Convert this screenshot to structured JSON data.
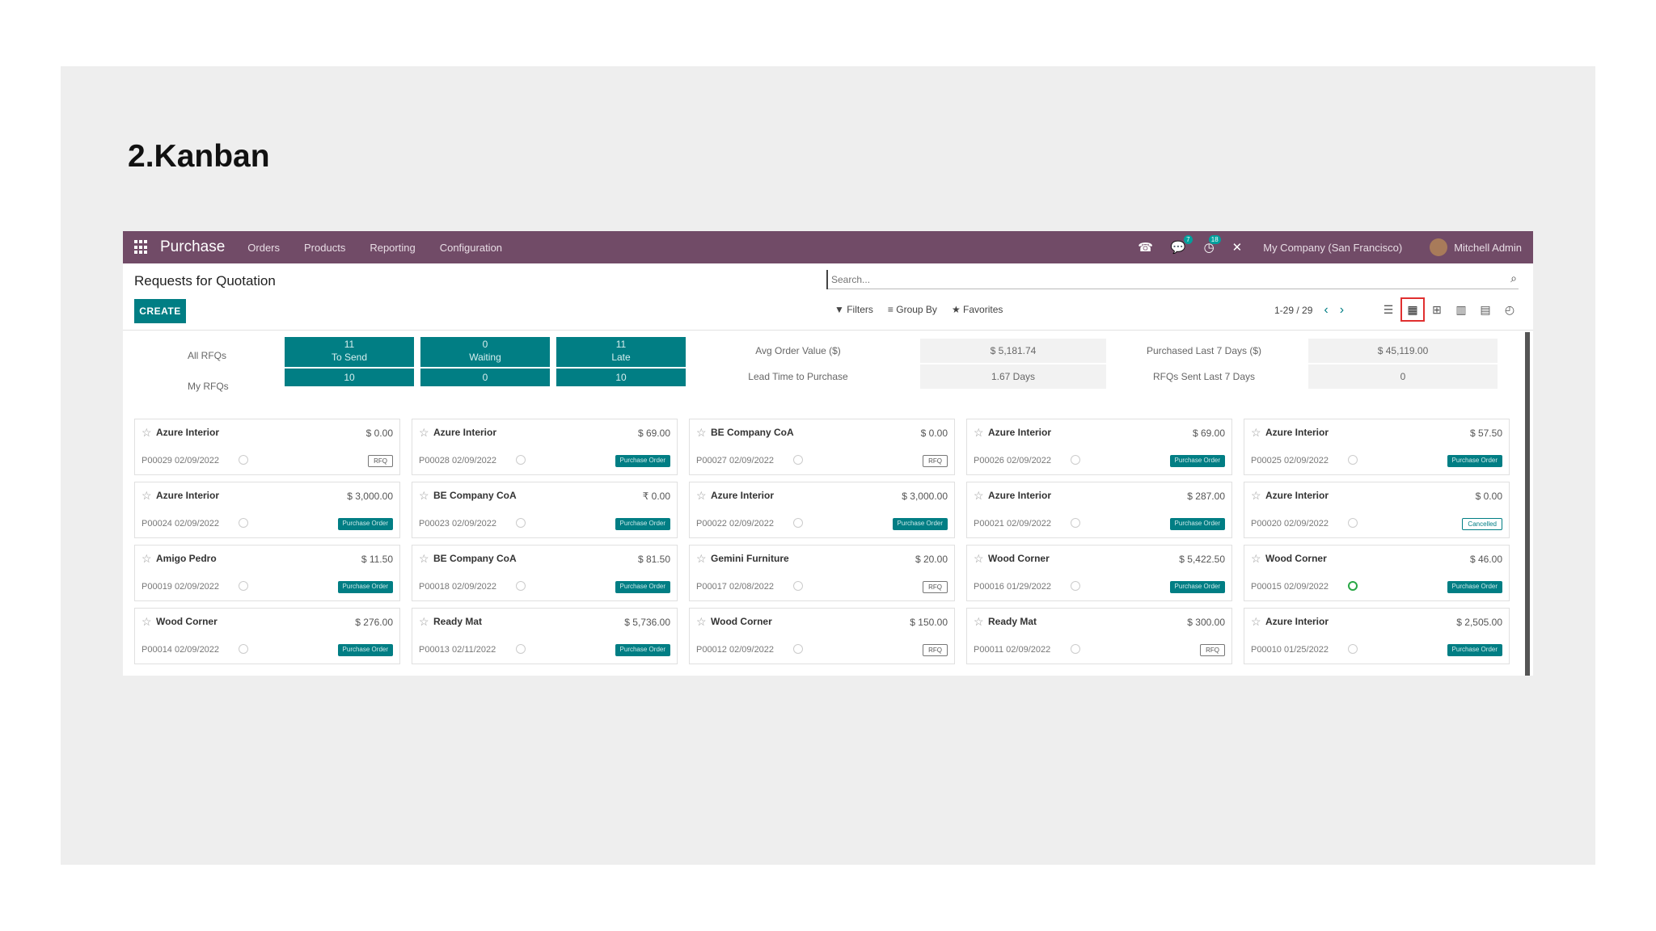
{
  "slide": {
    "title": "2.Kanban"
  },
  "navbar": {
    "brand": "Purchase",
    "menus": [
      "Orders",
      "Products",
      "Reporting",
      "Configuration"
    ],
    "badges": {
      "messages": "7",
      "activities": "18"
    },
    "company": "My Company (San Francisco)",
    "user": "Mitchell Admin"
  },
  "control": {
    "breadcrumb": "Requests for Quotation",
    "create_label": "CREATE",
    "search_placeholder": "Search...",
    "filters_label": "Filters",
    "groupby_label": "Group By",
    "favorites_label": "Favorites",
    "pager": "1-29 / 29",
    "active_view": "kanban"
  },
  "dashboard": {
    "row_labels": [
      "All RFQs",
      "My RFQs"
    ],
    "tiles": [
      {
        "count": "11",
        "label": "To Send",
        "mine": "10"
      },
      {
        "count": "0",
        "label": "Waiting",
        "mine": "0"
      },
      {
        "count": "11",
        "label": "Late",
        "mine": "10"
      }
    ],
    "metrics": [
      {
        "label": "Avg Order Value ($)",
        "value": "$ 5,181.74"
      },
      {
        "label": "Lead Time to Purchase",
        "value": "1.67  Days"
      },
      {
        "label": "Purchased Last 7 Days ($)",
        "value": "$ 45,119.00"
      },
      {
        "label": "RFQs Sent Last 7 Days",
        "value": "0"
      }
    ]
  },
  "cards": [
    {
      "partner": "Azure Interior",
      "amount": "$ 0.00",
      "ref": "P00029 02/09/2022",
      "status": "RFQ",
      "kind": "rfq"
    },
    {
      "partner": "Azure Interior",
      "amount": "$ 69.00",
      "ref": "P00028 02/09/2022",
      "status": "Purchase Order",
      "kind": "po"
    },
    {
      "partner": "BE Company CoA",
      "amount": "$ 0.00",
      "ref": "P00027 02/09/2022",
      "status": "RFQ",
      "kind": "rfq"
    },
    {
      "partner": "Azure Interior",
      "amount": "$ 69.00",
      "ref": "P00026 02/09/2022",
      "status": "Purchase Order",
      "kind": "po"
    },
    {
      "partner": "Azure Interior",
      "amount": "$ 57.50",
      "ref": "P00025 02/09/2022",
      "status": "Purchase Order",
      "kind": "po"
    },
    {
      "partner": "Azure Interior",
      "amount": "$ 3,000.00",
      "ref": "P00024 02/09/2022",
      "status": "Purchase Order",
      "kind": "po"
    },
    {
      "partner": "BE Company CoA",
      "amount": "₹ 0.00",
      "ref": "P00023 02/09/2022",
      "status": "Purchase Order",
      "kind": "po"
    },
    {
      "partner": "Azure Interior",
      "amount": "$ 3,000.00",
      "ref": "P00022 02/09/2022",
      "status": "Purchase Order",
      "kind": "po"
    },
    {
      "partner": "Azure Interior",
      "amount": "$ 287.00",
      "ref": "P00021 02/09/2022",
      "status": "Purchase Order",
      "kind": "po"
    },
    {
      "partner": "Azure Interior",
      "amount": "$ 0.00",
      "ref": "P00020 02/09/2022",
      "status": "Cancelled",
      "kind": "cancel"
    },
    {
      "partner": "Amigo Pedro",
      "amount": "$ 11.50",
      "ref": "P00019 02/09/2022",
      "status": "Purchase Order",
      "kind": "po"
    },
    {
      "partner": "BE Company CoA",
      "amount": "$ 81.50",
      "ref": "P00018 02/09/2022",
      "status": "Purchase Order",
      "kind": "po"
    },
    {
      "partner": "Gemini Furniture",
      "amount": "$ 20.00",
      "ref": "P00017 02/08/2022",
      "status": "RFQ",
      "kind": "rfq"
    },
    {
      "partner": "Wood Corner",
      "amount": "$ 5,422.50",
      "ref": "P00016 01/29/2022",
      "status": "Purchase Order",
      "kind": "po"
    },
    {
      "partner": "Wood Corner",
      "amount": "$ 46.00",
      "ref": "P00015 02/09/2022",
      "status": "Purchase Order",
      "kind": "po",
      "activity_ok": true
    },
    {
      "partner": "Wood Corner",
      "amount": "$ 276.00",
      "ref": "P00014 02/09/2022",
      "status": "Purchase Order",
      "kind": "po"
    },
    {
      "partner": "Ready Mat",
      "amount": "$ 5,736.00",
      "ref": "P00013 02/11/2022",
      "status": "Purchase Order",
      "kind": "po"
    },
    {
      "partner": "Wood Corner",
      "amount": "$ 150.00",
      "ref": "P00012 02/09/2022",
      "status": "RFQ",
      "kind": "rfq"
    },
    {
      "partner": "Ready Mat",
      "amount": "$ 300.00",
      "ref": "P00011 02/09/2022",
      "status": "RFQ",
      "kind": "rfq"
    },
    {
      "partner": "Azure Interior",
      "amount": "$ 2,505.00",
      "ref": "P00010 01/25/2022",
      "status": "Purchase Order",
      "kind": "po"
    }
  ]
}
